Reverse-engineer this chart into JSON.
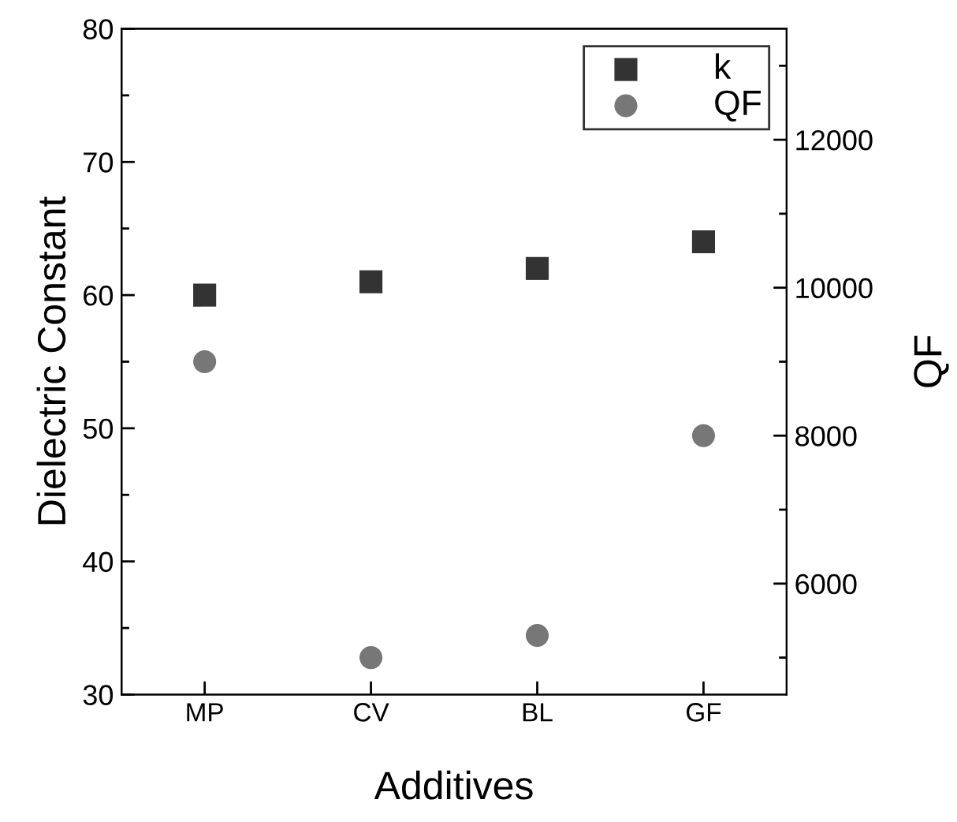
{
  "chart_data": {
    "type": "scatter",
    "xlabel": "Additives",
    "ylabel": "Dielectric Constant",
    "y2label": "QF",
    "categories": [
      "MP",
      "CV",
      "BL",
      "GF"
    ],
    "series": [
      {
        "name": "k",
        "color": "#333333",
        "marker": "square",
        "values": [
          60,
          61,
          62,
          64
        ]
      },
      {
        "name": "QF",
        "color": "#777777",
        "marker": "circle",
        "axis": "y2",
        "values": [
          9000,
          5000,
          5300,
          8000
        ]
      }
    ],
    "ylim": [
      30,
      80
    ],
    "yticks": [
      30,
      40,
      50,
      60,
      70,
      80
    ],
    "y2lim": [
      4500,
      13500
    ],
    "y2ticks": [
      6000,
      8000,
      10000,
      12000
    ],
    "legend": "top right",
    "grid": false
  }
}
